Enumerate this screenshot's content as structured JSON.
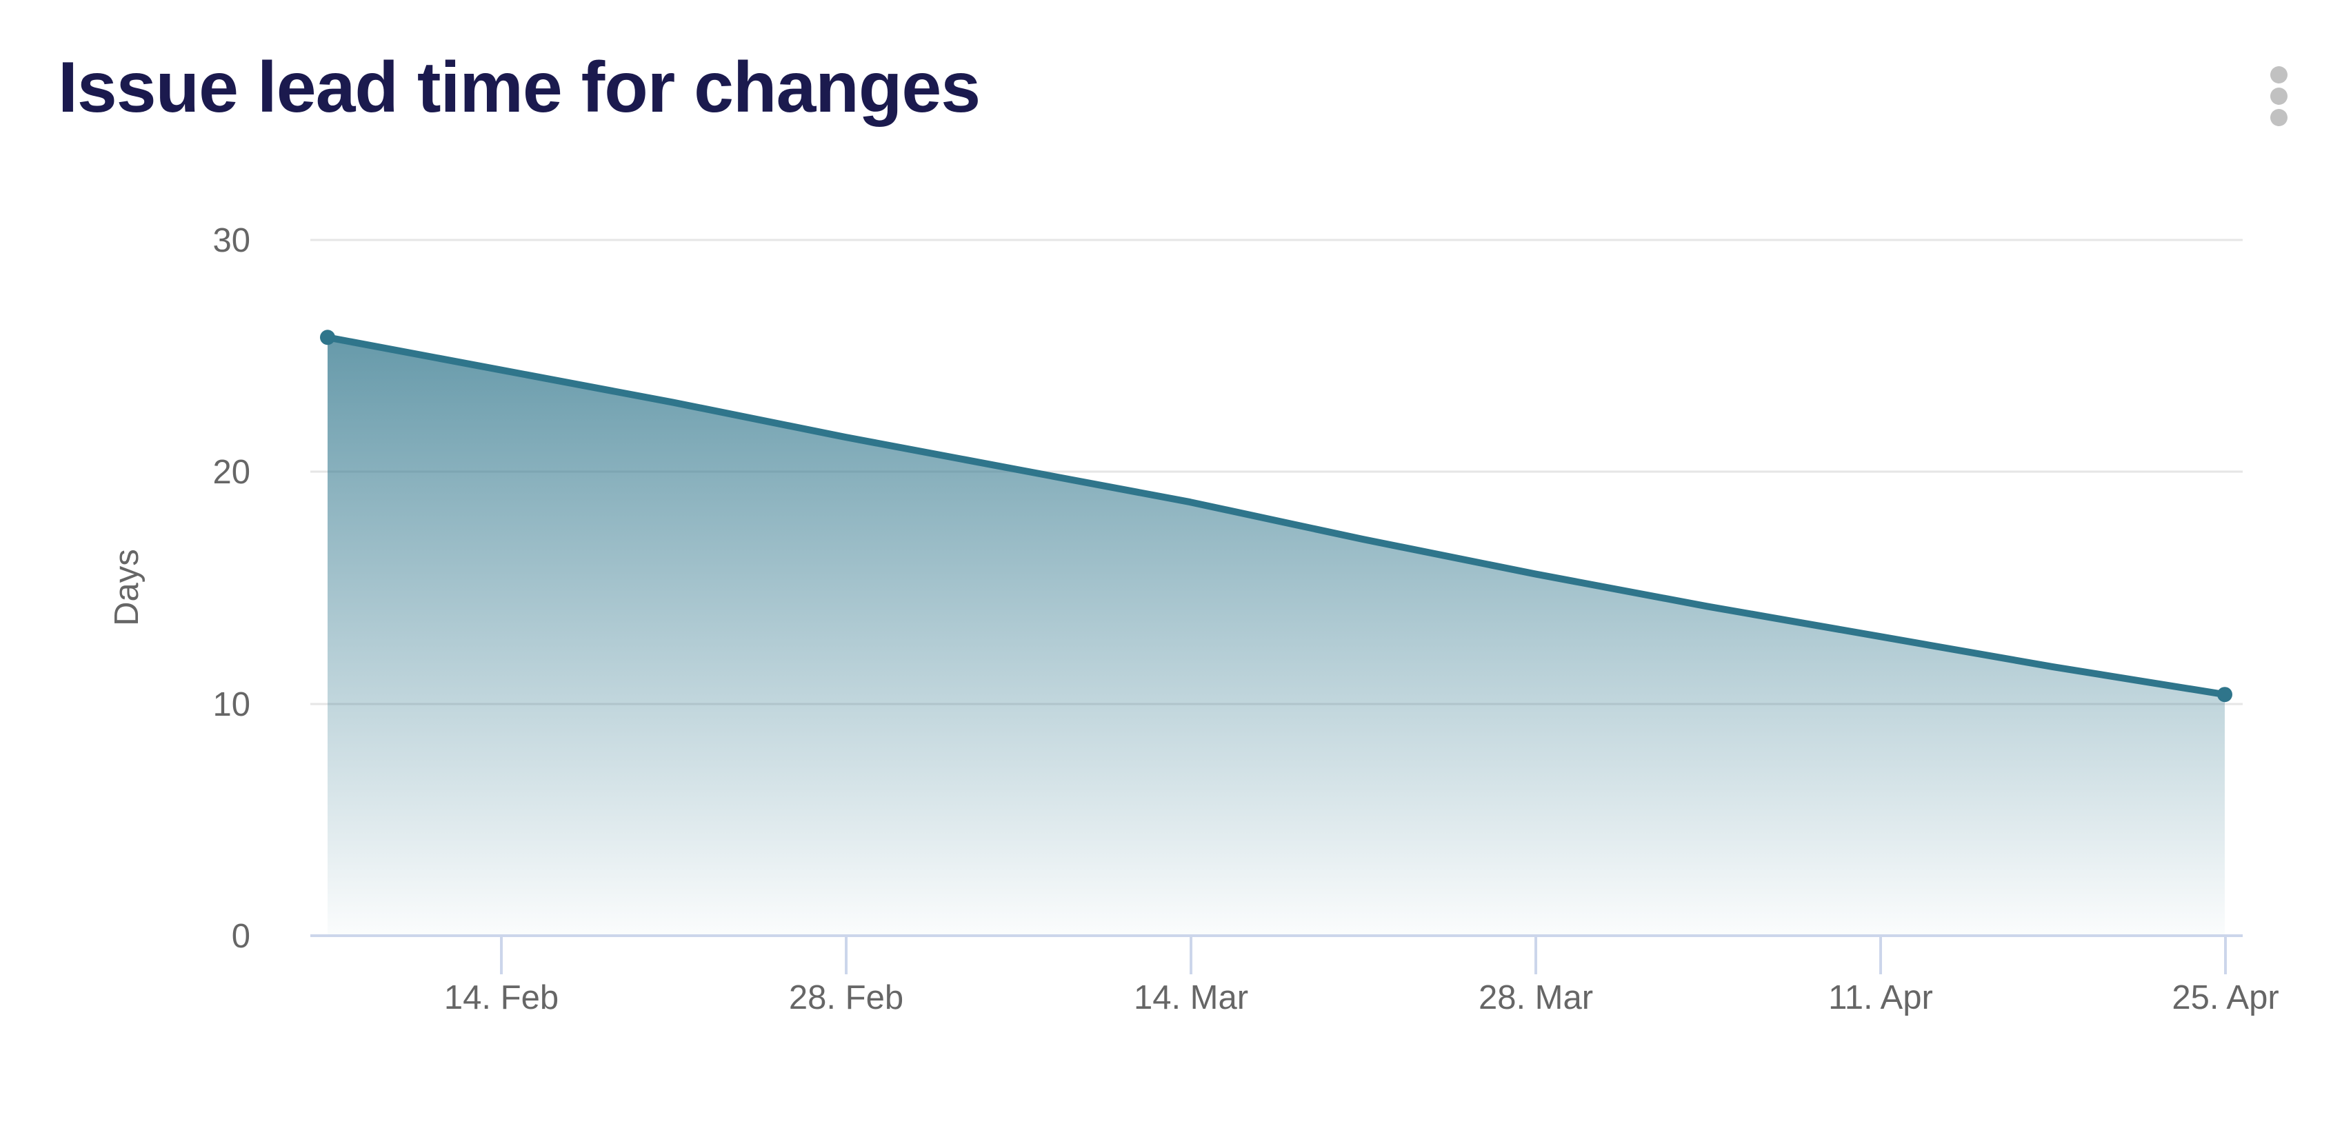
{
  "header": {
    "title": "Issue lead time for changes",
    "menu_tooltip": "Chart context menu"
  },
  "chart_data": {
    "type": "area",
    "title": "Issue lead time for changes",
    "xlabel": "",
    "ylabel": "Days",
    "ylim": [
      0,
      30
    ],
    "y_ticks": [
      30,
      20,
      10,
      0
    ],
    "grid": "horizontal-only",
    "legend": "none",
    "categories": [
      "14. Feb",
      "28. Feb",
      "14. Mar",
      "28. Mar",
      "11. Apr",
      "25. Apr"
    ],
    "x": [
      "7. Feb",
      "14. Feb",
      "21. Feb",
      "28. Feb",
      "7. Mar",
      "14. Mar",
      "21. Mar",
      "28. Mar",
      "4. Apr",
      "11. Apr",
      "18. Apr",
      "25. Apr"
    ],
    "series": [
      {
        "name": "Issue lead time",
        "unit": "Days",
        "values": [
          25.8,
          24.4,
          23.0,
          21.5,
          20.1,
          18.7,
          17.1,
          15.6,
          14.2,
          12.9,
          11.6,
          10.4
        ]
      }
    ],
    "colors": {
      "line": "#2f758b",
      "fill_top": "#2f758b",
      "fill_top_opacity": 0.85,
      "fill_bottom_opacity": 0.02,
      "title_text": "#1b1a4e",
      "axis_text": "#666666",
      "grid_line": "#e6e6e6",
      "axis_line": "#ccd6eb",
      "menu_dots": "#c1c1c1",
      "background": "#ffffff"
    }
  }
}
